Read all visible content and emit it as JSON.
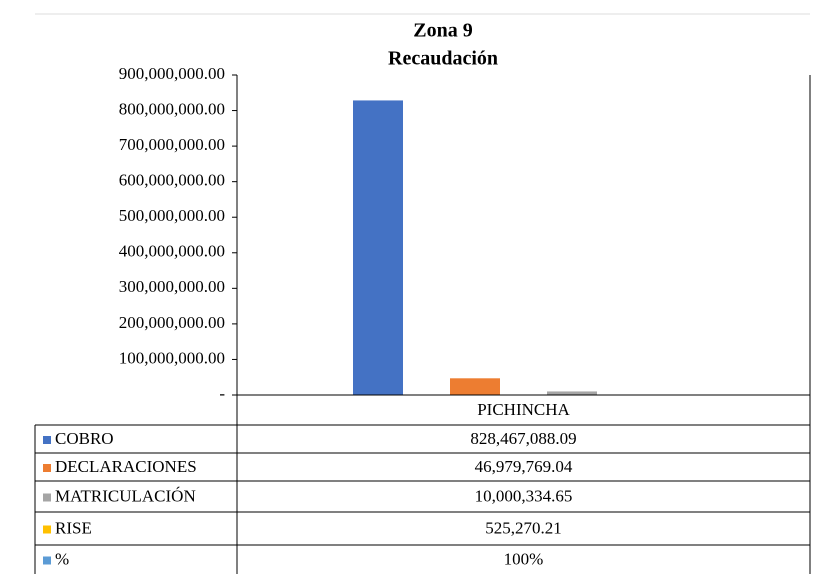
{
  "chart_data": {
    "type": "bar",
    "title": "Zona 9",
    "subtitle": "Recaudación",
    "categories": [
      "PICHINCHA"
    ],
    "series": [
      {
        "name": "COBRO",
        "color": "#4472c4",
        "values": [
          828467088.09
        ],
        "value_labels": [
          "828,467,088.09"
        ]
      },
      {
        "name": "DECLARACIONES",
        "color": "#ed7d31",
        "values": [
          46979769.04
        ],
        "value_labels": [
          "46,979,769.04"
        ]
      },
      {
        "name": "MATRICULACIÓN",
        "color": "#a5a5a5",
        "values": [
          10000334.65
        ],
        "value_labels": [
          "10,000,334.65"
        ]
      },
      {
        "name": "RISE",
        "color": "#ffc000",
        "values": [
          525270.21
        ],
        "value_labels": [
          "525,270.21"
        ]
      },
      {
        "name": "%",
        "color": "#5b9bd5",
        "values": [
          100
        ],
        "value_labels": [
          "100%"
        ]
      }
    ],
    "ylim": [
      0,
      900000000
    ],
    "yticks": [
      {
        "value": 0,
        "label": "-"
      },
      {
        "value": 100000000,
        "label": "100,000,000.00"
      },
      {
        "value": 200000000,
        "label": "200,000,000.00"
      },
      {
        "value": 300000000,
        "label": "300,000,000.00"
      },
      {
        "value": 400000000,
        "label": "400,000,000.00"
      },
      {
        "value": 500000000,
        "label": "500,000,000.00"
      },
      {
        "value": 600000000,
        "label": "600,000,000.00"
      },
      {
        "value": 700000000,
        "label": "700,000,000.00"
      },
      {
        "value": 800000000,
        "label": "800,000,000.00"
      },
      {
        "value": 900000000,
        "label": "900,000,000.00"
      }
    ],
    "grid": false
  }
}
